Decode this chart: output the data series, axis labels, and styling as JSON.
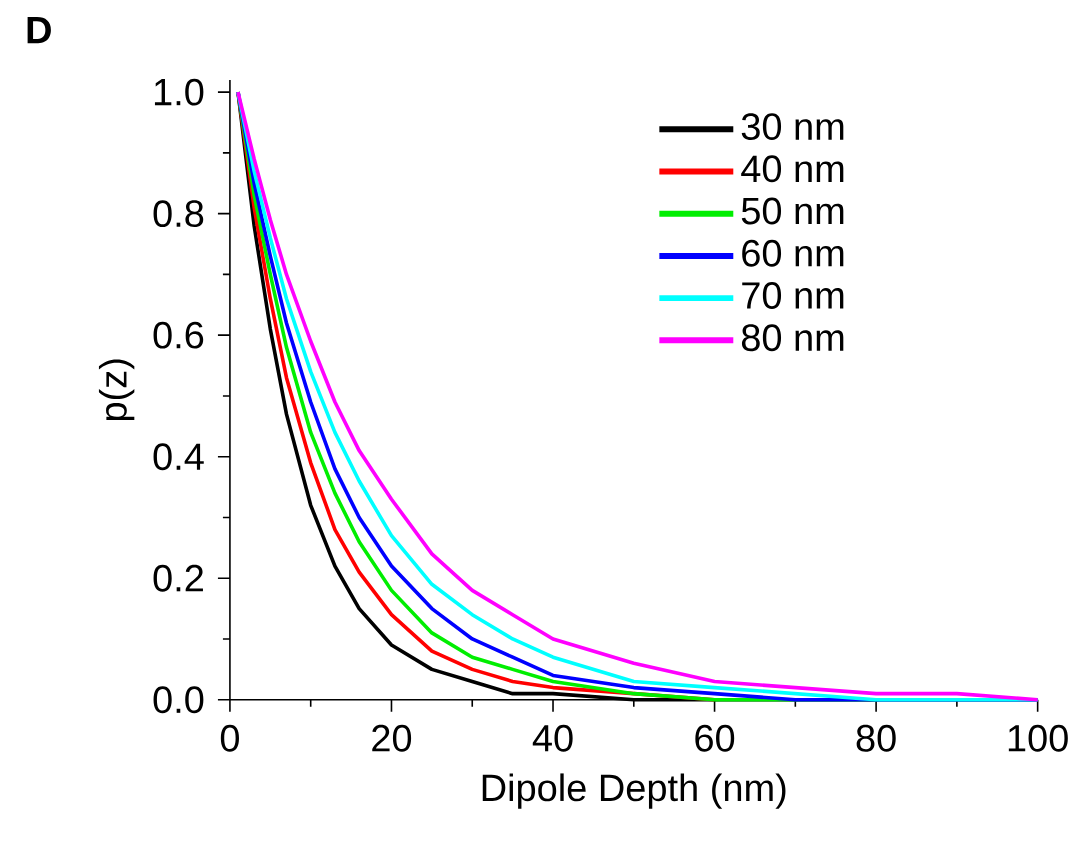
{
  "chart_data": {
    "type": "line",
    "xlabel": "Dipole Depth (nm)",
    "ylabel": "p(z)",
    "annotations": [
      "D"
    ],
    "x": [
      1,
      3,
      5,
      7,
      10,
      13,
      16,
      20,
      25,
      30,
      35,
      40,
      50,
      60,
      70,
      80,
      90,
      100
    ],
    "series": [
      {
        "name": "30 nm",
        "color": "#000000",
        "values": [
          1,
          0.78,
          0.61,
          0.47,
          0.32,
          0.22,
          0.15,
          0.09,
          0.05,
          0.03,
          0.01,
          0.01,
          0,
          0,
          0,
          0,
          0,
          0
        ]
      },
      {
        "name": "40 nm",
        "color": "#ff0000",
        "values": [
          1,
          0.81,
          0.66,
          0.53,
          0.39,
          0.28,
          0.21,
          0.14,
          0.08,
          0.05,
          0.03,
          0.02,
          0.01,
          0,
          null,
          null,
          null,
          null
        ]
      },
      {
        "name": "50 nm",
        "color": "#00ee00",
        "values": [
          1,
          0.83,
          0.7,
          0.58,
          0.44,
          0.34,
          0.26,
          0.18,
          0.11,
          0.07,
          0.05,
          0.03,
          0.01,
          0,
          0,
          0,
          null,
          null
        ]
      },
      {
        "name": "60 nm",
        "color": "#0000ff",
        "values": [
          1,
          0.85,
          0.73,
          0.62,
          0.49,
          0.38,
          0.3,
          0.22,
          0.15,
          0.1,
          0.07,
          0.04,
          0.02,
          0.01,
          0,
          0,
          0,
          0
        ]
      },
      {
        "name": "70 nm",
        "color": "#00ffff",
        "values": [
          1,
          0.87,
          0.76,
          0.66,
          0.54,
          0.44,
          0.36,
          0.27,
          0.19,
          0.14,
          0.1,
          0.07,
          0.03,
          0.02,
          0.01,
          0,
          0,
          0
        ]
      },
      {
        "name": "80 nm",
        "color": "#ff00ff",
        "values": [
          1,
          0.89,
          0.79,
          0.7,
          0.59,
          0.49,
          0.41,
          0.33,
          0.24,
          0.18,
          0.14,
          0.1,
          0.06,
          0.03,
          0.02,
          0.01,
          0.01,
          0
        ]
      }
    ],
    "xlim": [
      0,
      100
    ],
    "ylim": [
      0,
      1.02
    ],
    "xticks": [
      0,
      20,
      40,
      60,
      80,
      100
    ],
    "yticks": [
      {
        "value": 0,
        "label": "0.0"
      },
      0.2,
      0.4,
      0.6,
      0.8,
      {
        "value": 1,
        "label": "1.0"
      }
    ],
    "grid": false,
    "legend": "top right",
    "marker": "none",
    "line_style": "solid"
  }
}
